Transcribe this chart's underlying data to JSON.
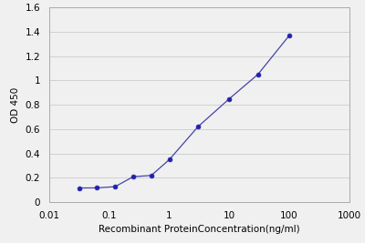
{
  "x": [
    0.0313,
    0.0625,
    0.125,
    0.25,
    0.5,
    1.0,
    3.0,
    10.0,
    30.0,
    100.0
  ],
  "y": [
    0.117,
    0.118,
    0.128,
    0.21,
    0.22,
    0.35,
    0.62,
    0.85,
    1.05,
    1.37
  ],
  "line_color": "#4444aa",
  "marker_color": "#2222aa",
  "xlabel": "Recombinant ProteinConcentration(ng/ml)",
  "ylabel": "OD 450",
  "xlim": [
    0.01,
    1000
  ],
  "ylim": [
    0,
    1.6
  ],
  "yticks": [
    0,
    0.2,
    0.4,
    0.6,
    0.8,
    1,
    1.2,
    1.4,
    1.6
  ],
  "ytick_labels": [
    "0",
    "0.2",
    "0.4",
    "0.6",
    "0.8",
    "1",
    "1.2",
    "1.4",
    "1.6"
  ],
  "xticks": [
    0.01,
    0.1,
    1,
    10,
    100,
    1000
  ],
  "xtick_labels": [
    "0.01",
    "0.1",
    "1",
    "10",
    "100",
    "1000"
  ],
  "background_color": "#f0f0f0",
  "plot_bg_color": "#f0f0f0",
  "grid_color": "#cccccc",
  "spine_color": "#aaaaaa",
  "label_fontsize": 7.5,
  "tick_fontsize": 7.5,
  "marker_size": 3.5,
  "line_width": 0.9
}
